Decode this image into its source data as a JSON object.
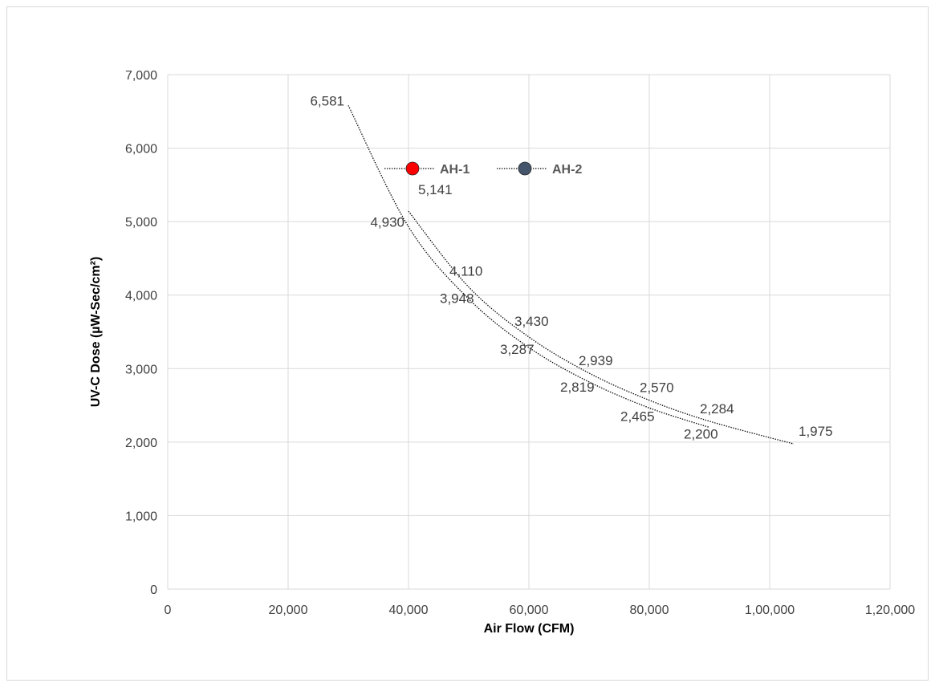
{
  "chart_data": {
    "type": "line",
    "xlabel": "Air Flow (CFM)",
    "ylabel": "UV-C Dose (µW-Sec/cm²)",
    "xlim": [
      0,
      120000
    ],
    "ylim": [
      0,
      7000
    ],
    "x_ticks": [
      {
        "value": 0,
        "label": "0"
      },
      {
        "value": 20000,
        "label": "20,000"
      },
      {
        "value": 40000,
        "label": "40,000"
      },
      {
        "value": 60000,
        "label": "60,000"
      },
      {
        "value": 80000,
        "label": "80,000"
      },
      {
        "value": 100000,
        "label": "1,00,000"
      },
      {
        "value": 120000,
        "label": "1,20,000"
      }
    ],
    "y_ticks": [
      {
        "value": 0,
        "label": "0"
      },
      {
        "value": 1000,
        "label": "1,000"
      },
      {
        "value": 2000,
        "label": "2,000"
      },
      {
        "value": 3000,
        "label": "3,000"
      },
      {
        "value": 4000,
        "label": "4,000"
      },
      {
        "value": 5000,
        "label": "5,000"
      },
      {
        "value": 6000,
        "label": "6,000"
      },
      {
        "value": 7000,
        "label": "7,000"
      }
    ],
    "grid": true,
    "legend_position": "top-right",
    "series": [
      {
        "name": "AH-1",
        "color": "#ff0000",
        "line_style": "dotted",
        "points": [
          {
            "x": 30000,
            "y": 6581,
            "label": "6,581"
          },
          {
            "x": 40000,
            "y": 4930,
            "label": "4,930"
          },
          {
            "x": 50000,
            "y": 3948,
            "label": "3,948"
          },
          {
            "x": 60000,
            "y": 3287,
            "label": "3,287"
          },
          {
            "x": 70000,
            "y": 2819,
            "label": "2,819"
          },
          {
            "x": 80000,
            "y": 2465,
            "label": "2,465"
          },
          {
            "x": 90000,
            "y": 2200,
            "label": "2,200"
          }
        ]
      },
      {
        "name": "AH-2",
        "color": "#44546a",
        "line_style": "dotted",
        "points": [
          {
            "x": 40000,
            "y": 5141,
            "label": "5,141"
          },
          {
            "x": 50000,
            "y": 4110,
            "label": "4,110"
          },
          {
            "x": 60000,
            "y": 3430,
            "label": "3,430"
          },
          {
            "x": 70000,
            "y": 2939,
            "label": "2,939"
          },
          {
            "x": 80000,
            "y": 2570,
            "label": "2,570"
          },
          {
            "x": 90000,
            "y": 2284,
            "label": "2,284"
          },
          {
            "x": 104000,
            "y": 1975,
            "label": "1,975"
          }
        ]
      }
    ]
  }
}
